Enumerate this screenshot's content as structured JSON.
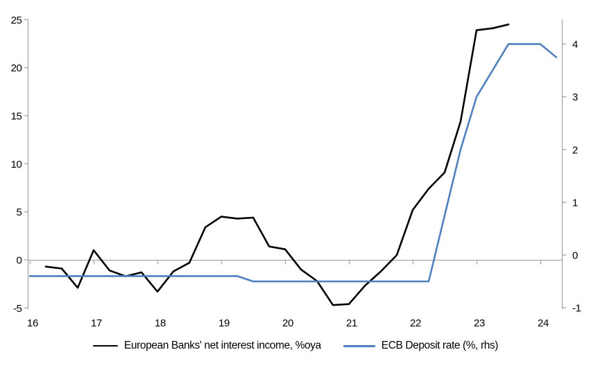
{
  "colors": {
    "axis_gray": "#A6A6A6",
    "text": "#000000",
    "series_black": "#000000",
    "series_blue": "#4E81BD",
    "background": "#FFFFFF"
  },
  "chart_data": {
    "type": "line",
    "title": "",
    "grid": "zero-line-only",
    "legend_position": "bottom-center",
    "x_axis": {
      "tick_labels": [
        "16",
        "17",
        "18",
        "19",
        "20",
        "21",
        "22",
        "23",
        "24"
      ],
      "tick_values": [
        16,
        17,
        18,
        19,
        20,
        21,
        22,
        23,
        24
      ],
      "range": [
        16,
        24.35
      ]
    },
    "left_axis": {
      "tick_labels": [
        "-5",
        "0",
        "5",
        "10",
        "15",
        "20",
        "25"
      ],
      "tick_values": [
        -5,
        0,
        5,
        10,
        15,
        20,
        25
      ],
      "range": [
        -5.1,
        25
      ]
    },
    "right_axis": {
      "tick_labels": [
        "-1",
        "0",
        "1",
        "2",
        "3",
        "4"
      ],
      "tick_values": [
        -1,
        0,
        1,
        2,
        3,
        4
      ],
      "range": [
        -1.05,
        4.45
      ]
    },
    "series": [
      {
        "name": "European Banks' net interest income, %oya",
        "axis": "left",
        "color": "#000000",
        "x": [
          16.25,
          16.5,
          16.75,
          17,
          17.25,
          17.5,
          17.75,
          18,
          18.25,
          18.5,
          18.75,
          19,
          19.25,
          19.5,
          19.75,
          20,
          20.25,
          20.5,
          20.75,
          21,
          21.25,
          21.5,
          21.75,
          22,
          22.25,
          22.5,
          22.75,
          23,
          23.25,
          23.5
        ],
        "values": [
          -0.7,
          -0.9,
          -2.9,
          1.0,
          -1.1,
          -1.7,
          -1.3,
          -3.3,
          -1.2,
          -0.3,
          3.4,
          4.5,
          4.3,
          4.4,
          1.4,
          1.1,
          -1.0,
          -2.2,
          -4.7,
          -4.6,
          -2.7,
          -1.2,
          0.5,
          5.2,
          7.4,
          9.1,
          14.4,
          23.9,
          24.1,
          24.5
        ]
      },
      {
        "name": "ECB Deposit rate (%, rhs)",
        "axis": "right",
        "color": "#4E81BD",
        "x": [
          16.0,
          19.25,
          19.5,
          22.25,
          22.5,
          22.75,
          23.0,
          23.25,
          23.5,
          24.0,
          24.25
        ],
        "values": [
          -0.4,
          -0.4,
          -0.5,
          -0.5,
          0.75,
          2.0,
          3.0,
          3.5,
          4.0,
          4.0,
          3.75
        ]
      }
    ]
  }
}
